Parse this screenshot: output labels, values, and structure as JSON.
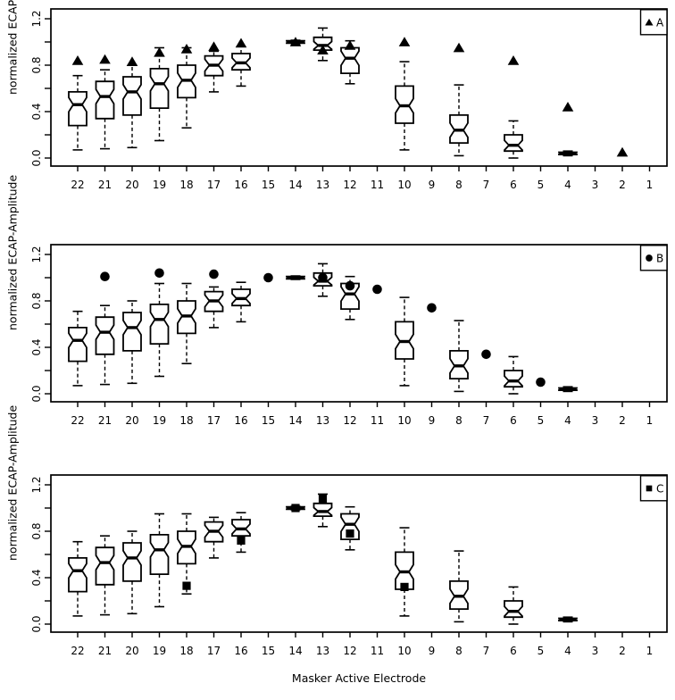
{
  "figure": {
    "background_color": "#ffffff",
    "line_color": "#000000",
    "xlabel": "Masker Active Electrode",
    "ylabel": "normalized ECAP-Amplitude"
  },
  "chart_data": {
    "type": "boxplot",
    "title": "",
    "xlabel": "Masker Active Electrode",
    "ylabel": "normalized ECAP-Amplitude",
    "x_categories": [
      22,
      21,
      20,
      19,
      18,
      17,
      16,
      15,
      14,
      13,
      12,
      11,
      10,
      9,
      8,
      7,
      6,
      5,
      4,
      3,
      2,
      1
    ],
    "ylim": [
      0,
      1.2
    ],
    "y_ticks": [
      0,
      0.2,
      0.4,
      0.6,
      0.8,
      1.0,
      1.2
    ],
    "y_tick_labels": {
      "0": "0.0",
      "0.4": "0.4",
      "0.8": "0.8",
      "1.2": "1.2"
    },
    "grid": "off",
    "legend_position": "top-right-inside",
    "boxes_note": "shared notched boxplots per electrode: [whisker_low, q1, median, q3, whisker_high]",
    "boxes": {
      "22": [
        0.07,
        0.28,
        0.46,
        0.57,
        0.71
      ],
      "21": [
        0.08,
        0.34,
        0.53,
        0.66,
        0.76
      ],
      "20": [
        0.09,
        0.37,
        0.57,
        0.7,
        0.8
      ],
      "19": [
        0.15,
        0.43,
        0.64,
        0.77,
        0.95
      ],
      "18": [
        0.26,
        0.52,
        0.67,
        0.8,
        0.95
      ],
      "17": [
        0.57,
        0.71,
        0.8,
        0.88,
        0.92
      ],
      "16": [
        0.62,
        0.76,
        0.82,
        0.9,
        0.96
      ],
      "14": [
        0.985,
        0.99,
        1.0,
        1.01,
        1.015
      ],
      "13": [
        0.84,
        0.93,
        0.97,
        1.04,
        1.12
      ],
      "12": [
        0.64,
        0.73,
        0.86,
        0.95,
        1.01
      ],
      "10": [
        0.07,
        0.3,
        0.45,
        0.62,
        0.83
      ],
      "8": [
        0.02,
        0.13,
        0.24,
        0.37,
        0.63
      ],
      "6": [
        0.0,
        0.06,
        0.11,
        0.2,
        0.32
      ],
      "4": [
        0.02,
        0.03,
        0.04,
        0.05,
        0.06
      ]
    },
    "panels": [
      {
        "id": "A",
        "legend": "A",
        "marker": "triangle",
        "points": [
          [
            22,
            0.84
          ],
          [
            21,
            0.85
          ],
          [
            20,
            0.83
          ],
          [
            19,
            0.91
          ],
          [
            18,
            0.94
          ],
          [
            17,
            0.96
          ],
          [
            16,
            0.99
          ],
          [
            14,
            1.0
          ],
          [
            13,
            0.93
          ],
          [
            12,
            0.97
          ],
          [
            10,
            1.0
          ],
          [
            8,
            0.95
          ],
          [
            6,
            0.84
          ],
          [
            4,
            0.44
          ],
          [
            2,
            0.05
          ]
        ]
      },
      {
        "id": "B",
        "legend": "B",
        "marker": "circle",
        "points": [
          [
            21,
            1.01
          ],
          [
            19,
            1.04
          ],
          [
            17,
            1.03
          ],
          [
            15,
            1.0
          ],
          [
            13,
            1.0
          ],
          [
            12,
            0.93
          ],
          [
            11,
            0.9
          ],
          [
            9,
            0.74
          ],
          [
            7,
            0.34
          ],
          [
            5,
            0.1
          ]
        ]
      },
      {
        "id": "C",
        "legend": "C",
        "marker": "square",
        "points": [
          [
            18,
            0.33
          ],
          [
            16,
            0.72
          ],
          [
            14,
            1.0
          ],
          [
            13,
            1.08
          ],
          [
            12,
            0.78
          ],
          [
            10,
            0.32
          ]
        ]
      }
    ]
  }
}
